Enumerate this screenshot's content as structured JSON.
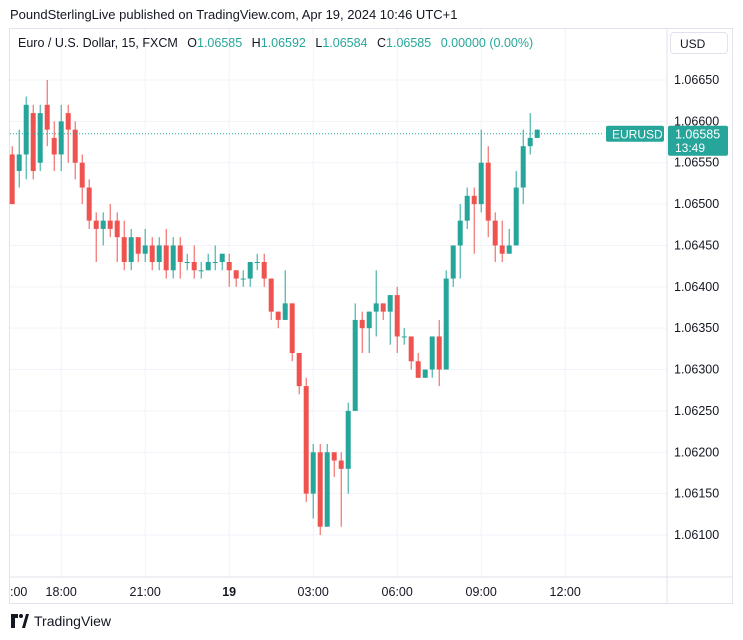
{
  "attribution": "PoundSterlingLive published on TradingView.com, Apr 19, 2024 10:46 UTC+1",
  "currency_button": "USD",
  "footer_brand": "TradingView",
  "legend": {
    "symbol": "Euro / U.S. Dollar, 15, FXCM",
    "open_label": "O",
    "open": "1.06585",
    "high_label": "H",
    "high": "1.06592",
    "low_label": "L",
    "low": "1.06584",
    "close_label": "C",
    "close": "1.06585",
    "change": "0.00000 (0.00%)"
  },
  "colors": {
    "up": "#26a69a",
    "down": "#ef5350",
    "grid": "#f0f3fa",
    "axis_text": "#131722",
    "price_tag": "#26a69a"
  },
  "chart_data": {
    "type": "candlestick",
    "title": "Euro / U.S. Dollar, 15, FXCM",
    "ylim": [
      1.0606,
      1.0668
    ],
    "y_ticks": [
      "1.06650",
      "1.06600",
      "1.06550",
      "1.06500",
      "1.06450",
      "1.06400",
      "1.06350",
      "1.06300",
      "1.06250",
      "1.06200",
      "1.06150",
      "1.06100"
    ],
    "x_tick_labels": [
      {
        "bar": -1,
        "label": ":00",
        "bold": false
      },
      {
        "bar": 7,
        "label": "18:00",
        "bold": false
      },
      {
        "bar": 19,
        "label": "21:00",
        "bold": false
      },
      {
        "bar": 31,
        "label": "19",
        "bold": true
      },
      {
        "bar": 43,
        "label": "03:00",
        "bold": false
      },
      {
        "bar": 55,
        "label": "06:00",
        "bold": false
      },
      {
        "bar": 67,
        "label": "09:00",
        "bold": false
      },
      {
        "bar": 79,
        "label": "12:00",
        "bold": false
      }
    ],
    "current_price": {
      "symbol": "EURUSD",
      "price": "1.06585",
      "countdown": "13:49",
      "value": 1.06585
    },
    "candles": [
      [
        1.0656,
        1.065,
        1.065,
        1.0657
      ],
      [
        1.0654,
        1.0656,
        1.0652,
        1.0659
      ],
      [
        1.0656,
        1.0662,
        1.0653,
        1.0663
      ],
      [
        1.0661,
        1.0654,
        1.0653,
        1.0662
      ],
      [
        1.0655,
        1.0661,
        1.0654,
        1.0662
      ],
      [
        1.0662,
        1.0659,
        1.0657,
        1.0665
      ],
      [
        1.0658,
        1.0656,
        1.0654,
        1.066
      ],
      [
        1.0656,
        1.066,
        1.0654,
        1.0662
      ],
      [
        1.0661,
        1.0659,
        1.0655,
        1.0662
      ],
      [
        1.0659,
        1.0655,
        1.0653,
        1.066
      ],
      [
        1.0655,
        1.0652,
        1.065,
        1.0656
      ],
      [
        1.0652,
        1.0648,
        1.0647,
        1.0653
      ],
      [
        1.0648,
        1.0647,
        1.0643,
        1.0649
      ],
      [
        1.0647,
        1.0648,
        1.0645,
        1.0649
      ],
      [
        1.0648,
        1.0647,
        1.0646,
        1.065
      ],
      [
        1.0648,
        1.0646,
        1.0643,
        1.0649
      ],
      [
        1.0646,
        1.0643,
        1.0642,
        1.0648
      ],
      [
        1.0643,
        1.0646,
        1.0642,
        1.0647
      ],
      [
        1.0646,
        1.0644,
        1.0643,
        1.0646
      ],
      [
        1.0644,
        1.0645,
        1.0643,
        1.0647
      ],
      [
        1.0645,
        1.0643,
        1.0642,
        1.0646
      ],
      [
        1.0643,
        1.0645,
        1.0642,
        1.0646
      ],
      [
        1.0645,
        1.0642,
        1.0641,
        1.0647
      ],
      [
        1.0642,
        1.0645,
        1.0641,
        1.0646
      ],
      [
        1.0645,
        1.0643,
        1.0641,
        1.0646
      ],
      [
        1.0643,
        1.0643,
        1.0642,
        1.0644
      ],
      [
        1.0643,
        1.0642,
        1.0641,
        1.0645
      ],
      [
        1.0642,
        1.0642,
        1.0641,
        1.0643
      ],
      [
        1.0642,
        1.0643,
        1.0642,
        1.0644
      ],
      [
        1.0643,
        1.0643,
        1.0642,
        1.0645
      ],
      [
        1.0643,
        1.0644,
        1.0642,
        1.0644
      ],
      [
        1.0643,
        1.0642,
        1.064,
        1.0644
      ],
      [
        1.0642,
        1.0641,
        1.064,
        1.0642
      ],
      [
        1.0641,
        1.0641,
        1.064,
        1.0642
      ],
      [
        1.0641,
        1.0643,
        1.064,
        1.0643
      ],
      [
        1.0643,
        1.0643,
        1.0642,
        1.0644
      ],
      [
        1.0643,
        1.0641,
        1.064,
        1.0644
      ],
      [
        1.0641,
        1.0637,
        1.0636,
        1.0641
      ],
      [
        1.0637,
        1.0636,
        1.0635,
        1.0637
      ],
      [
        1.0636,
        1.0638,
        1.0636,
        1.0642
      ],
      [
        1.0638,
        1.0632,
        1.0631,
        1.0638
      ],
      [
        1.0632,
        1.0628,
        1.0627,
        1.0632
      ],
      [
        1.0628,
        1.0615,
        1.0614,
        1.0629
      ],
      [
        1.0615,
        1.062,
        1.0612,
        1.0621
      ],
      [
        1.062,
        1.0611,
        1.061,
        1.0621
      ],
      [
        1.0611,
        1.062,
        1.0611,
        1.0621
      ],
      [
        1.062,
        1.0619,
        1.0617,
        1.062
      ],
      [
        1.0619,
        1.0618,
        1.0611,
        1.062
      ],
      [
        1.0618,
        1.0625,
        1.0615,
        1.0626
      ],
      [
        1.0625,
        1.0636,
        1.0625,
        1.0638
      ],
      [
        1.0636,
        1.0635,
        1.0632,
        1.0637
      ],
      [
        1.0635,
        1.0637,
        1.0632,
        1.0637
      ],
      [
        1.0637,
        1.0638,
        1.0634,
        1.0642
      ],
      [
        1.0638,
        1.0637,
        1.0636,
        1.0638
      ],
      [
        1.0637,
        1.0639,
        1.0633,
        1.0639
      ],
      [
        1.0639,
        1.0634,
        1.0632,
        1.064
      ],
      [
        1.0634,
        1.0634,
        1.0633,
        1.0635
      ],
      [
        1.0634,
        1.0631,
        1.063,
        1.0634
      ],
      [
        1.0631,
        1.0629,
        1.0629,
        1.0632
      ],
      [
        1.0629,
        1.063,
        1.0629,
        1.063
      ],
      [
        1.063,
        1.0634,
        1.0629,
        1.0634
      ],
      [
        1.0634,
        1.063,
        1.0628,
        1.0636
      ],
      [
        1.063,
        1.0641,
        1.063,
        1.0642
      ],
      [
        1.0641,
        1.0645,
        1.064,
        1.0645
      ],
      [
        1.0645,
        1.0648,
        1.0641,
        1.065
      ],
      [
        1.0648,
        1.0651,
        1.0647,
        1.0652
      ],
      [
        1.0651,
        1.065,
        1.0644,
        1.0652
      ],
      [
        1.065,
        1.0655,
        1.0649,
        1.0659
      ],
      [
        1.0655,
        1.0648,
        1.0646,
        1.0657
      ],
      [
        1.0648,
        1.0645,
        1.0643,
        1.0649
      ],
      [
        1.0645,
        1.0644,
        1.0643,
        1.0648
      ],
      [
        1.0644,
        1.0645,
        1.0644,
        1.0647
      ],
      [
        1.0645,
        1.0652,
        1.0645,
        1.0654
      ],
      [
        1.0652,
        1.0657,
        1.065,
        1.0659
      ],
      [
        1.0657,
        1.0658,
        1.0656,
        1.0661
      ],
      [
        1.0658,
        1.0659,
        1.0658,
        1.0659
      ]
    ]
  }
}
